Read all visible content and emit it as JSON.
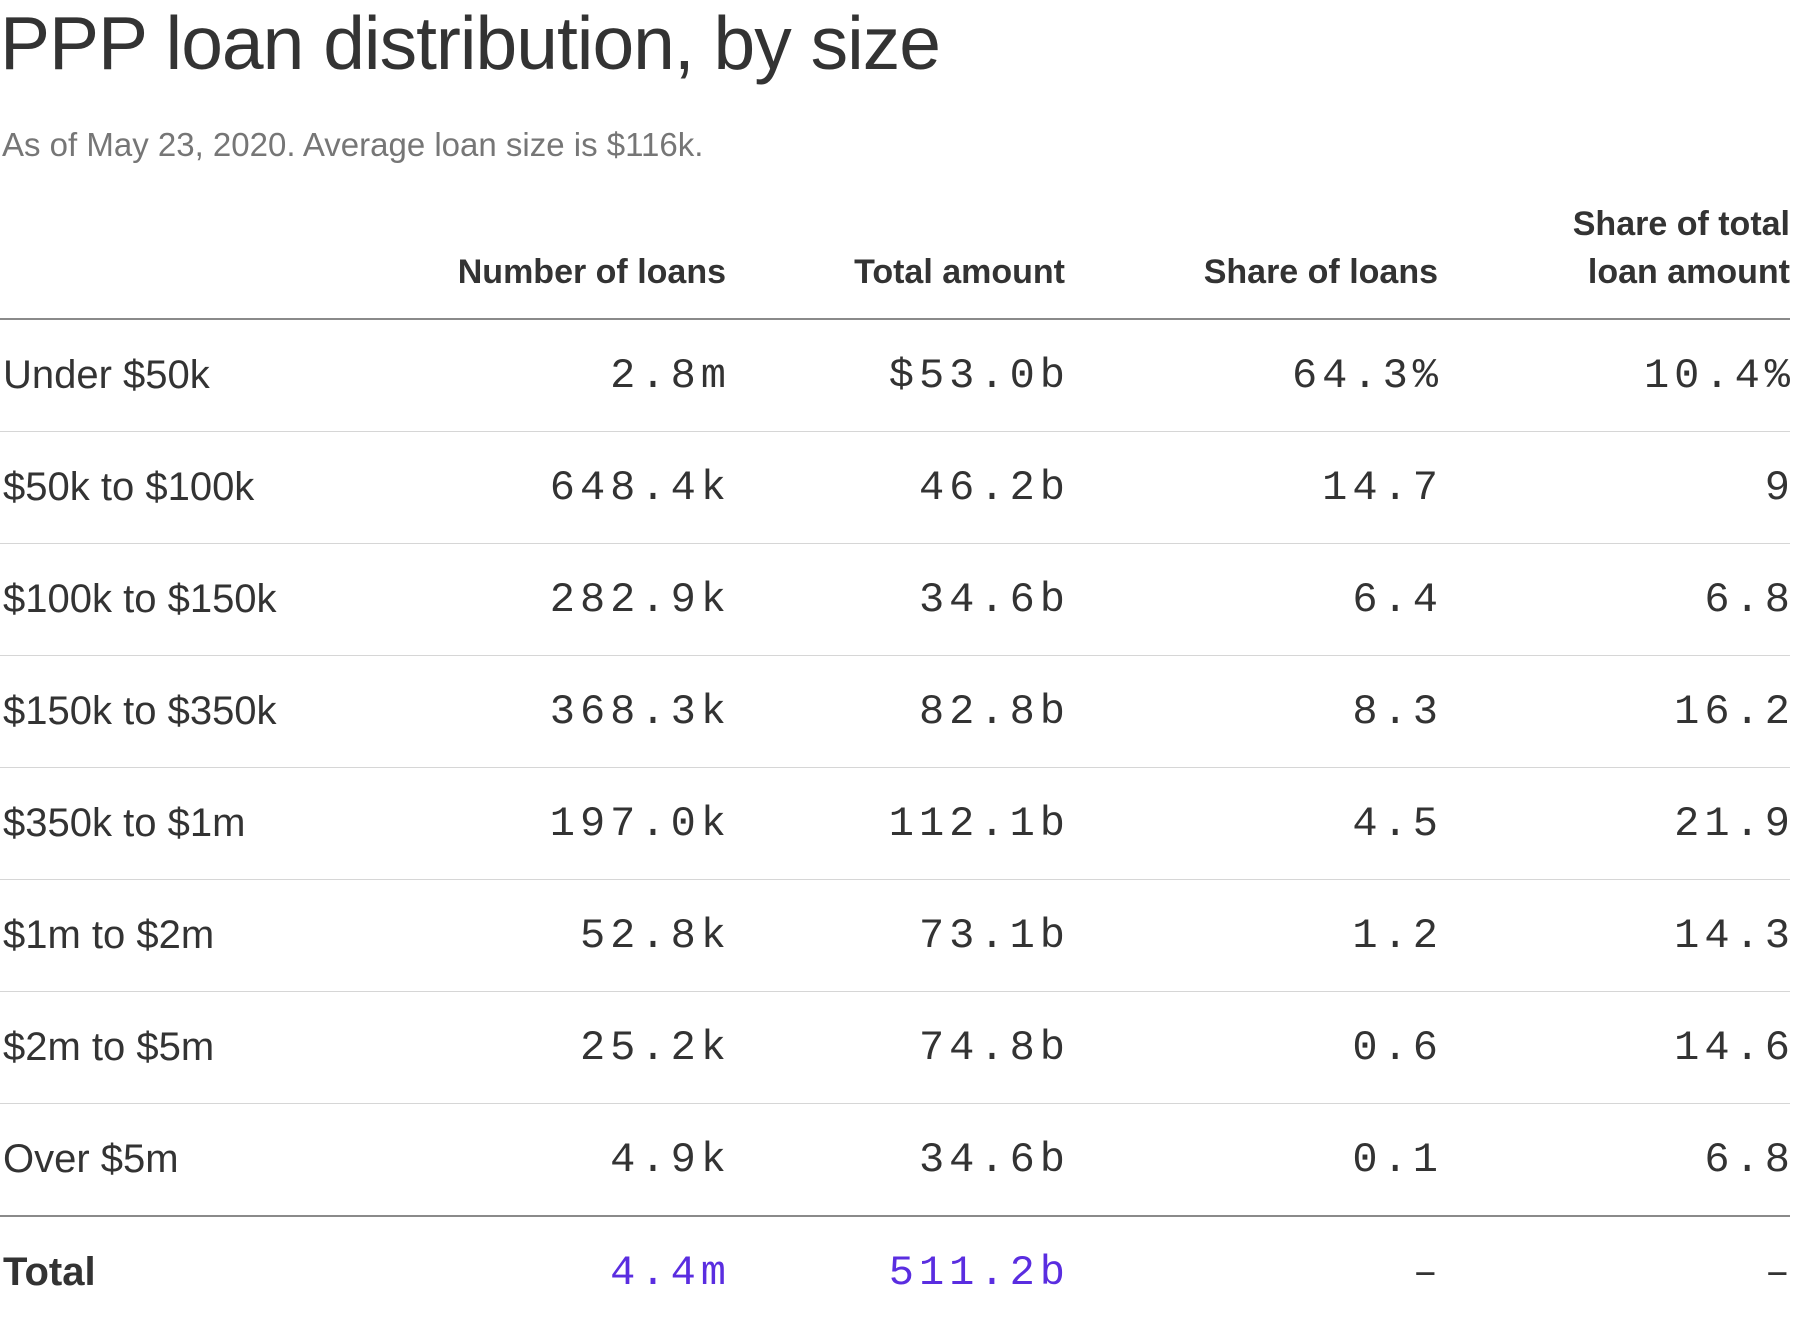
{
  "chart_data": {
    "type": "table",
    "title": "PPP loan distribution, by size",
    "subtitle": "As of May 23, 2020. Average loan size is $116k.",
    "columns": [
      "",
      "Number of loans",
      "Total amount",
      "Share of loans",
      "Share of total loan amount"
    ],
    "rows": [
      {
        "label": "Under $50k",
        "values": [
          "2.8m",
          "$53.0b",
          "64.3%",
          "10.4%"
        ]
      },
      {
        "label": "$50k to $100k",
        "values": [
          "648.4k",
          "46.2b",
          "14.7",
          "9"
        ]
      },
      {
        "label": "$100k to $150k",
        "values": [
          "282.9k",
          "34.6b",
          "6.4",
          "6.8"
        ]
      },
      {
        "label": "$150k to $350k",
        "values": [
          "368.3k",
          "82.8b",
          "8.3",
          "16.2"
        ]
      },
      {
        "label": "$350k to $1m",
        "values": [
          "197.0k",
          "112.1b",
          "4.5",
          "21.9"
        ]
      },
      {
        "label": "$1m to $2m",
        "values": [
          "52.8k",
          "73.1b",
          "1.2",
          "14.3"
        ]
      },
      {
        "label": "$2m to $5m",
        "values": [
          "25.2k",
          "74.8b",
          "0.6",
          "14.6"
        ]
      },
      {
        "label": "Over $5m",
        "values": [
          "4.9k",
          "34.6b",
          "0.1",
          "6.8"
        ]
      }
    ],
    "total": {
      "label": "Total",
      "values": [
        "4.4m",
        "511.2b",
        "–",
        "–"
      ]
    },
    "accent_color": "#5a2de0"
  }
}
